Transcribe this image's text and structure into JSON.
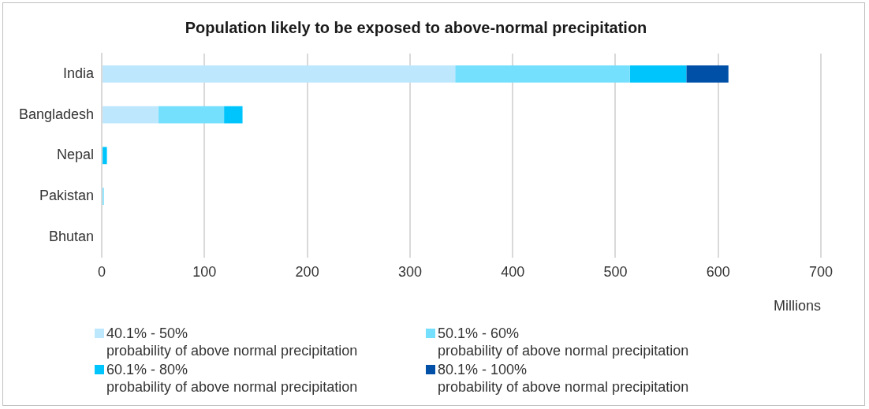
{
  "chart_data": {
    "type": "bar",
    "orientation": "horizontal",
    "stacked": true,
    "title": "Population likely to be exposed to above-normal precipitation",
    "xlabel": "Millions",
    "categories": [
      "India",
      "Bangladesh",
      "Nepal",
      "Pakistan",
      "Bhutan"
    ],
    "series": [
      {
        "name": "40.1% - 50%\nprobability of above normal precipitation",
        "color": "#bde7fd",
        "values": [
          344,
          55,
          0,
          0,
          0
        ]
      },
      {
        "name": "50.1% - 60%\nprobability of above normal precipitation",
        "color": "#75dffe",
        "values": [
          170,
          64,
          0,
          2,
          0
        ]
      },
      {
        "name": "60.1% - 80%\nprobability of above normal precipitation",
        "color": "#00c5fd",
        "values": [
          55,
          18,
          5,
          0,
          0
        ]
      },
      {
        "name": "80.1% - 100%\nprobability of above normal precipitation",
        "color": "#0050a8",
        "values": [
          41,
          0,
          0,
          0,
          0
        ]
      }
    ],
    "xlim": [
      0,
      700
    ],
    "xticks": [
      0,
      100,
      200,
      300,
      400,
      500,
      600,
      700
    ],
    "grid": "x",
    "legend": "bottom"
  }
}
